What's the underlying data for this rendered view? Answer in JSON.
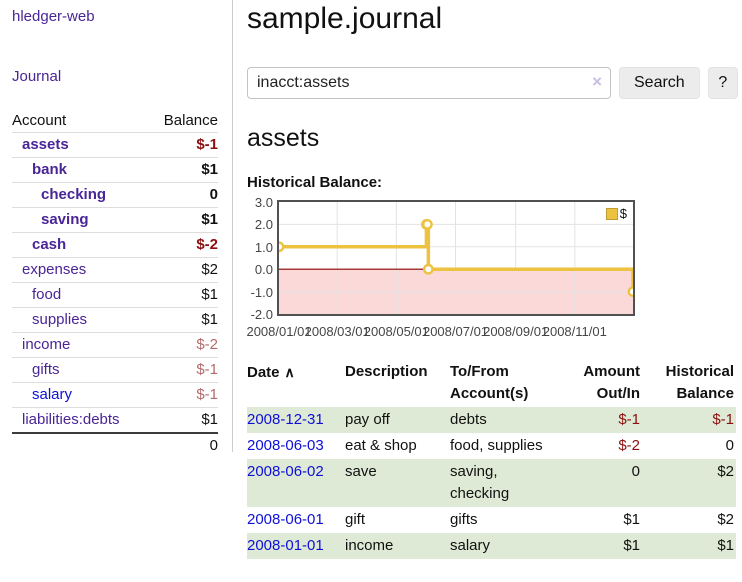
{
  "colors": {
    "accent_purple": "#4a2596",
    "link_blue": "#0f0fd8",
    "negative": "#8b0f0f",
    "negative_dim": "#b36b6b",
    "row_green": "#deead5",
    "chart_series": "#edc240",
    "chart_negative_region": "#fbd9d9",
    "chart_zero_line": "#8b0000",
    "chart_grid": "#e3e3e3"
  },
  "sidebar": {
    "brand": "hledger-web",
    "journal_label": "Journal",
    "accounts_table": {
      "header_account": "Account",
      "header_balance": "Balance",
      "rows": [
        {
          "name": "assets",
          "balance": "$-1"
        },
        {
          "name": "bank",
          "balance": "$1"
        },
        {
          "name": "checking",
          "balance": "0"
        },
        {
          "name": "saving",
          "balance": "$1"
        },
        {
          "name": "cash",
          "balance": "$-2"
        },
        {
          "name": "expenses",
          "balance": "$2"
        },
        {
          "name": "food",
          "balance": "$1"
        },
        {
          "name": "supplies",
          "balance": "$1"
        },
        {
          "name": "income",
          "balance": "$-2"
        },
        {
          "name": "gifts",
          "balance": "$-1"
        },
        {
          "name": "salary",
          "balance": "$-1"
        },
        {
          "name": "liabilities:debts",
          "balance": "$1"
        }
      ],
      "total": "0"
    }
  },
  "main": {
    "title": "sample.journal",
    "search": {
      "value": "inacct:assets",
      "clear_icon": "×",
      "button_label": "Search",
      "help_label": "?"
    },
    "account_heading": "assets",
    "chart_label": "Historical Balance:",
    "register_table": {
      "headers": {
        "date": "Date",
        "sort_icon": "∧",
        "description": "Description",
        "accounts": "To/From Account(s)",
        "amount": "Amount Out/In",
        "balance": "Historical Balance"
      },
      "rows": [
        {
          "date": "2008-12-31",
          "description": "pay off",
          "accounts": "debts",
          "amount": "$-1",
          "balance": "$-1"
        },
        {
          "date": "2008-06-03",
          "description": "eat & shop",
          "accounts": "food, supplies",
          "amount": "$-2",
          "balance": "0"
        },
        {
          "date": "2008-06-02",
          "description": "save",
          "accounts": "saving, checking",
          "amount": "0",
          "balance": "$2"
        },
        {
          "date": "2008-06-01",
          "description": "gift",
          "accounts": "gifts",
          "amount": "$1",
          "balance": "$2"
        },
        {
          "date": "2008-01-01",
          "description": "income",
          "accounts": "salary",
          "amount": "$1",
          "balance": "$1"
        }
      ]
    }
  },
  "chart_data": {
    "type": "line",
    "title": "Historical Balance:",
    "step": true,
    "series": [
      {
        "name": "$",
        "points": [
          [
            "2008-01-01",
            1
          ],
          [
            "2008-06-01",
            2
          ],
          [
            "2008-06-02",
            2
          ],
          [
            "2008-06-03",
            0
          ],
          [
            "2008-12-31",
            -1
          ]
        ]
      }
    ],
    "xlim": [
      "2008-01-01",
      "2008-12-31"
    ],
    "ylim": [
      -2,
      3
    ],
    "x_ticks": [
      "2008/01/01",
      "2008/03/01",
      "2008/05/01",
      "2008/07/01",
      "2008/09/01",
      "2008/11/01"
    ],
    "y_ticks": [
      3,
      2,
      1,
      0,
      -1,
      -2
    ],
    "legend": {
      "label": "$",
      "position": "top-right"
    },
    "grid": true,
    "negative_region_shaded": true
  }
}
